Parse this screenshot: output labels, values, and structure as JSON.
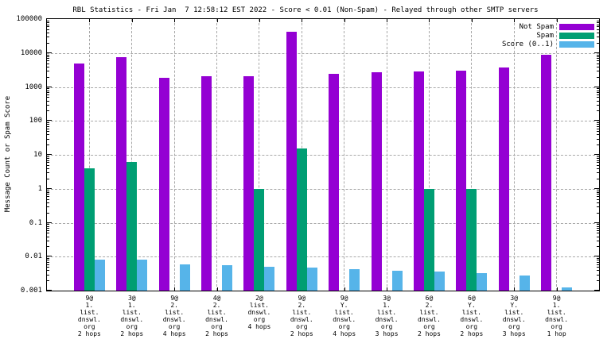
{
  "title": "RBL Statistics - Fri Jan  7 12:58:12 EST 2022 - Score < 0.01 (Non-Spam) - Relayed through other SMTP servers",
  "colors": {
    "not_spam": "#9400d3",
    "spam": "#009e73",
    "score": "#56b4e9",
    "grid": "#a9a9a9",
    "border": "#000000",
    "background": "#ffffff"
  },
  "legend": {
    "position": "top-right",
    "items": [
      "Not Spam",
      "Spam",
      "Score (0..1)"
    ]
  },
  "chart_data": {
    "type": "bar",
    "title": "RBL Statistics - Fri Jan  7 12:58:12 EST 2022 - Score < 0.01 (Non-Spam) - Relayed through other SMTP servers",
    "xlabel": "",
    "ylabel": "Message Count or Spam Score",
    "y_scale": "log10",
    "ylim": [
      0.001,
      100000
    ],
    "grid": true,
    "legend_position": "top-right",
    "ytick_labels": [
      "100000",
      "10000",
      "1000",
      "100",
      "10",
      "1",
      "0.1",
      "0.01",
      "0.001"
    ],
    "ytick_values": [
      100000,
      10000,
      1000,
      100,
      10,
      1,
      0.1,
      0.01,
      0.001
    ],
    "categories": [
      [
        "9@",
        "1.",
        "list.",
        "dnswl.",
        "org",
        "2 hops"
      ],
      [
        "3@",
        "1.",
        "list.",
        "dnswl.",
        "org",
        "2 hops"
      ],
      [
        "9@",
        "2.",
        "list.",
        "dnswl.",
        "org",
        "4 hops"
      ],
      [
        "4@",
        "2.",
        "list.",
        "dnswl.",
        "org",
        "2 hops"
      ],
      [
        "2@",
        "list.",
        "dnswl.",
        "org",
        "4 hops"
      ],
      [
        "9@",
        "2.",
        "list.",
        "dnswl.",
        "org",
        "2 hops"
      ],
      [
        "9@",
        "Y.",
        "list.",
        "dnswl.",
        "org",
        "4 hops"
      ],
      [
        "3@",
        "1.",
        "list.",
        "dnswl.",
        "org",
        "3 hops"
      ],
      [
        "6@",
        "2.",
        "list.",
        "dnswl.",
        "org",
        "2 hops"
      ],
      [
        "6@",
        "Y.",
        "list.",
        "dnswl.",
        "org",
        "2 hops"
      ],
      [
        "3@",
        "Y.",
        "list.",
        "dnswl.",
        "org",
        "3 hops"
      ],
      [
        "9@",
        "1.",
        "list.",
        "dnswl.",
        "org",
        "1 hop"
      ]
    ],
    "series": [
      {
        "name": "Not Spam",
        "color": "#9400d3",
        "values": [
          4800,
          7500,
          1900,
          2100,
          2100,
          42000,
          2400,
          2700,
          2900,
          3000,
          3700,
          8700
        ]
      },
      {
        "name": "Spam",
        "color": "#009e73",
        "values": [
          4,
          6,
          null,
          null,
          1,
          15,
          null,
          null,
          1,
          1,
          null,
          null
        ]
      },
      {
        "name": "Score (0..1)",
        "color": "#56b4e9",
        "values": [
          0.008,
          0.008,
          0.006,
          0.0055,
          0.005,
          0.0047,
          0.0042,
          0.0038,
          0.0037,
          0.0033,
          0.0028,
          0.00125
        ]
      }
    ]
  }
}
